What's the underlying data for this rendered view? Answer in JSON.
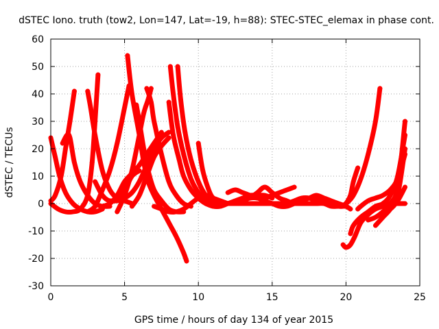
{
  "chart_data": {
    "type": "line",
    "title": "dSTEC Iono. truth (tow2, Lon=147, Lat=-19, h=88): STEC-STEC_elemax in phase cont.",
    "xlabel": "GPS time / hours of day 134 of year 2015",
    "ylabel": "dSTEC  / TECUs",
    "xlim": [
      0,
      25
    ],
    "ylim": [
      -30,
      60
    ],
    "xticks": [
      0,
      5,
      10,
      15,
      20,
      25
    ],
    "yticks": [
      -30,
      -20,
      -10,
      0,
      10,
      20,
      30,
      40,
      50,
      60
    ],
    "xtick_labels": [
      "0",
      "5",
      "10",
      "15",
      "20",
      "25"
    ],
    "ytick_labels": [
      "-30",
      "-20",
      "-10",
      "0",
      "10",
      "20",
      "30",
      "40",
      "50",
      "60"
    ],
    "grid": true,
    "legend": "none",
    "marker": "plus",
    "color": "#ff0000",
    "series": [
      {
        "x": [
          0.0,
          0.3,
          0.6,
          1.0,
          1.5,
          2.0,
          2.5,
          3.0,
          3.5
        ],
        "y": [
          24,
          17,
          10,
          4,
          0,
          -2,
          -3,
          -3,
          -2
        ]
      },
      {
        "x": [
          0.0,
          0.3,
          0.7,
          1.0,
          1.3,
          1.6
        ],
        "y": [
          1,
          3,
          10,
          20,
          30,
          41
        ]
      },
      {
        "x": [
          0.8,
          1.1,
          1.3,
          1.6,
          2.0,
          2.5,
          3.0,
          3.5,
          4.0
        ],
        "y": [
          22,
          25,
          24,
          15,
          8,
          3,
          0,
          -1,
          -1
        ]
      },
      {
        "x": [
          0.0,
          0.5,
          1.0,
          1.5,
          2.0,
          2.5,
          2.8,
          3.0,
          3.2
        ],
        "y": [
          0,
          -2,
          -3,
          -3,
          -2,
          3,
          15,
          30,
          47
        ]
      },
      {
        "x": [
          2.5,
          2.7,
          3.0,
          3.5,
          4.0,
          4.5,
          5.0,
          5.5
        ],
        "y": [
          41,
          35,
          25,
          12,
          5,
          2,
          1,
          0
        ]
      },
      {
        "x": [
          2.5,
          3.0,
          3.5,
          4.0,
          4.5,
          5.0,
          5.3
        ],
        "y": [
          -3,
          -1,
          5,
          12,
          22,
          35,
          43
        ]
      },
      {
        "x": [
          3.0,
          3.5,
          4.0,
          4.5,
          5.0,
          5.5,
          6.0
        ],
        "y": [
          8,
          3,
          1,
          2,
          5,
          10,
          12
        ]
      },
      {
        "x": [
          3.5,
          4.0,
          4.5,
          5.0,
          5.5,
          6.0,
          6.5,
          7.0,
          7.5
        ],
        "y": [
          -1,
          0,
          3,
          8,
          11,
          14,
          18,
          22,
          26
        ]
      },
      {
        "x": [
          5.2,
          5.5,
          6.0,
          6.3,
          6.6,
          7.0,
          7.5,
          8.0,
          8.5,
          9.0,
          9.2
        ],
        "y": [
          54,
          40,
          25,
          15,
          8,
          3,
          -2,
          -7,
          -12,
          -18,
          -21
        ]
      },
      {
        "x": [
          4.0,
          4.5,
          5.0,
          5.5,
          6.0,
          6.5,
          7.0,
          7.5,
          8.0
        ],
        "y": [
          1,
          1,
          2,
          4,
          8,
          14,
          20,
          24,
          26
        ]
      },
      {
        "x": [
          5.8,
          6.0,
          6.3,
          6.6,
          7.0,
          7.5,
          8.0,
          8.5,
          9.0
        ],
        "y": [
          36,
          30,
          20,
          12,
          5,
          1,
          -2,
          -3,
          -3
        ]
      },
      {
        "x": [
          4.5,
          5.0,
          5.5,
          6.0,
          6.3,
          6.6,
          6.8
        ],
        "y": [
          -3,
          3,
          12,
          25,
          33,
          38,
          42
        ]
      },
      {
        "x": [
          6.5,
          6.8,
          7.0,
          7.5,
          8.0,
          8.5,
          9.0,
          9.5
        ],
        "y": [
          42,
          37,
          30,
          18,
          8,
          3,
          0,
          -1
        ]
      },
      {
        "x": [
          5.5,
          6.0,
          6.5,
          7.0,
          7.5,
          8.0
        ],
        "y": [
          -1,
          3,
          10,
          17,
          21,
          24
        ]
      },
      {
        "x": [
          8.1,
          8.3,
          8.6,
          9.0,
          9.5,
          10.0,
          10.5,
          11.0,
          11.5
        ],
        "y": [
          50,
          40,
          28,
          18,
          9,
          4,
          1,
          0,
          -1
        ]
      },
      {
        "x": [
          8.6,
          8.8,
          9.1,
          9.5,
          10.0,
          10.5,
          11.0,
          11.5,
          12.0
        ],
        "y": [
          50,
          38,
          26,
          16,
          8,
          3,
          1,
          0,
          0
        ]
      },
      {
        "x": [
          8.0,
          8.3,
          8.7,
          9.0,
          9.5,
          10.0,
          10.5,
          11.0
        ],
        "y": [
          37,
          25,
          16,
          10,
          5,
          2,
          0,
          -1
        ]
      },
      {
        "x": [
          7.0,
          7.5,
          8.0,
          8.5,
          9.0,
          9.5,
          10.0,
          10.5,
          11.0,
          11.5,
          12.0
        ],
        "y": [
          -1,
          -2,
          -3,
          -3,
          -2,
          0,
          2,
          3,
          2,
          1,
          0
        ]
      },
      {
        "x": [
          10.0,
          10.3,
          10.7,
          11.0,
          11.5,
          12.0,
          12.5,
          13.0
        ],
        "y": [
          22,
          12,
          5,
          2,
          0,
          0,
          1,
          2
        ]
      },
      {
        "x": [
          10.5,
          11.0,
          11.5,
          12.0,
          12.5,
          13.0,
          13.5,
          14.0,
          14.5,
          15.0
        ],
        "y": [
          0,
          -1,
          -1,
          0,
          1,
          2,
          3,
          3,
          3,
          2
        ]
      },
      {
        "x": [
          11.0,
          11.5,
          12.0,
          12.5,
          13.0,
          13.5,
          14.0,
          14.5,
          15.0,
          15.5,
          16.0,
          16.5,
          17.0,
          17.5,
          18.0,
          18.5,
          19.0,
          19.5,
          20.0
        ],
        "y": [
          1,
          0,
          0,
          0,
          0,
          0,
          0,
          0,
          0,
          0,
          0,
          0,
          0,
          0,
          0,
          0,
          -1,
          -1,
          -1
        ]
      },
      {
        "x": [
          12.0,
          12.5,
          13.0,
          13.5,
          14.0,
          14.5,
          15.0,
          15.5,
          16.0,
          16.5
        ],
        "y": [
          4,
          5,
          4,
          3,
          2,
          2,
          3,
          4,
          5,
          6
        ]
      },
      {
        "x": [
          13.5,
          14.0,
          14.5,
          15.0,
          15.5,
          16.0,
          16.5,
          17.0,
          17.5,
          18.0,
          18.5
        ],
        "y": [
          2,
          4,
          6,
          4,
          2,
          1,
          0,
          1,
          2,
          3,
          2
        ]
      },
      {
        "x": [
          12.5,
          13.0,
          13.5,
          14.0,
          14.5,
          15.0,
          15.5,
          16.0,
          16.5,
          17.0,
          17.5,
          18.0,
          18.5,
          19.0,
          19.5,
          20.0,
          20.3
        ],
        "y": [
          0,
          1,
          2,
          2,
          1,
          0,
          -1,
          -1,
          0,
          1,
          2,
          2,
          2,
          1,
          0,
          -1,
          -2
        ]
      },
      {
        "x": [
          16.0,
          16.5,
          17.0,
          17.5,
          18.0,
          18.5,
          19.0,
          19.5,
          20.0,
          20.5,
          21.0,
          21.5,
          22.0,
          22.3
        ],
        "y": [
          0,
          1,
          2,
          2,
          1,
          1,
          0,
          -1,
          0,
          3,
          9,
          18,
          30,
          42
        ]
      },
      {
        "x": [
          19.8,
          20.0,
          20.3,
          20.6,
          21.0,
          21.5,
          22.0,
          22.5,
          23.0,
          23.5,
          24.0
        ],
        "y": [
          -15,
          -16,
          -15,
          -12,
          -7,
          -4,
          -2,
          -1,
          0,
          0,
          0
        ]
      },
      {
        "x": [
          19.5,
          19.8,
          20.0,
          20.3,
          20.5,
          20.8
        ],
        "y": [
          -1,
          -1,
          0,
          3,
          8,
          13
        ]
      },
      {
        "x": [
          20.3,
          20.5,
          21.0,
          21.5,
          22.0,
          22.5,
          23.0,
          23.5,
          24.0
        ],
        "y": [
          -11,
          -8,
          -5,
          -3,
          -1,
          0,
          3,
          10,
          25
        ]
      },
      {
        "x": [
          21.5,
          22.0,
          22.5,
          23.0,
          23.5,
          24.0
        ],
        "y": [
          -6,
          -5,
          -3,
          0,
          6,
          30
        ]
      },
      {
        "x": [
          22.0,
          22.5,
          23.0,
          23.5,
          24.0
        ],
        "y": [
          -8,
          -5,
          -2,
          3,
          20
        ]
      },
      {
        "x": [
          20.8,
          21.0,
          21.5,
          22.0,
          22.5,
          23.0,
          23.5,
          24.0
        ],
        "y": [
          -2,
          -1,
          1,
          2,
          3,
          5,
          9,
          18
        ]
      },
      {
        "x": [
          22.5,
          23.0,
          23.5,
          24.0
        ],
        "y": [
          -3,
          -2,
          1,
          6
        ]
      }
    ]
  }
}
